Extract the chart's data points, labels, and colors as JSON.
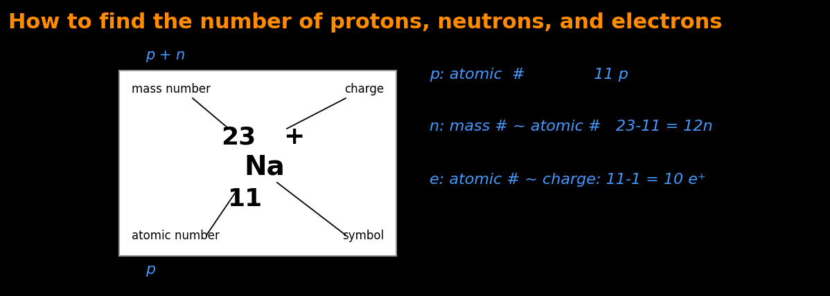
{
  "title": "How to find the number of protons, neutrons, and electrons",
  "title_color": "#FF8C00",
  "bg_color": "#000000",
  "handwritten_color": "#4499FF",
  "box_bg": "#FFFFFF",
  "box_edge": "#999999",
  "ptn_label": "p + n",
  "p_label": "p",
  "box_labels": {
    "mass_number": "mass number",
    "charge": "charge",
    "atomic_number": "atomic number",
    "symbol": "symbol"
  },
  "element_symbol": "Na",
  "mass_number": "23",
  "atomic_number": "11",
  "charge": "+",
  "right_line1": "p: atomic  #              11 p",
  "right_line2": "n: mass # ~ atomic #   23-11 = 12n",
  "right_line3": "e: atomic # ~ charge: 11-1 = 10 e⁺"
}
